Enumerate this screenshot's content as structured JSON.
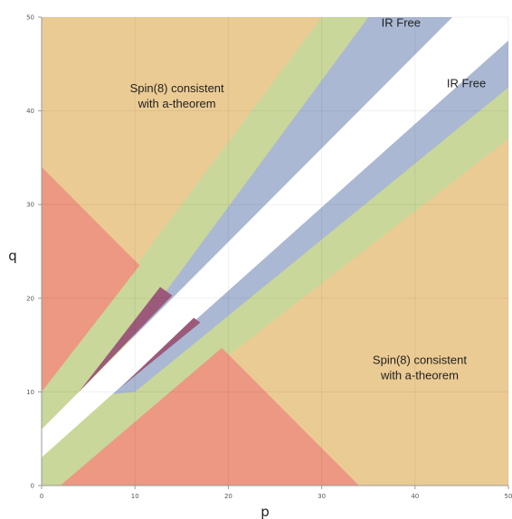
{
  "chart_data": {
    "type": "region",
    "title": "",
    "xlabel": "p",
    "ylabel": "q",
    "xlim": [
      0,
      50
    ],
    "ylim": [
      0,
      50
    ],
    "xticks": [
      0,
      10,
      20,
      30,
      40,
      50
    ],
    "yticks": [
      0,
      10,
      20,
      30,
      40,
      50
    ],
    "grid": true,
    "colors": {
      "background": "#ebcb94",
      "green": "#c9d79a",
      "blue": "#aab8d4",
      "white": "#ffffff",
      "red": "#ec9882",
      "purple": "#9b5a79"
    },
    "regions": [
      {
        "label": "Spin(8) consistent region (upper-left)",
        "color": "background",
        "points": [
          [
            0,
            50
          ],
          [
            30,
            50
          ],
          [
            0,
            10
          ]
        ]
      },
      {
        "label": "green band",
        "color": "green",
        "points": [
          [
            0,
            10
          ],
          [
            30,
            50
          ],
          [
            35,
            50
          ],
          [
            50,
            42.5
          ],
          [
            50,
            37
          ],
          [
            2,
            0
          ],
          [
            0,
            0
          ]
        ]
      },
      {
        "label": "blue band",
        "color": "blue",
        "points": [
          [
            5,
            9.5
          ],
          [
            35,
            50
          ],
          [
            50,
            50
          ],
          [
            50,
            42.5
          ],
          [
            10,
            10
          ]
        ]
      },
      {
        "label": "white strip",
        "color": "white",
        "points": [
          [
            0,
            3
          ],
          [
            0,
            6
          ],
          [
            44,
            50
          ],
          [
            50,
            50
          ],
          [
            50,
            47.5
          ]
        ]
      },
      {
        "label": "red region left",
        "color": "red",
        "points": [
          [
            0,
            34
          ],
          [
            0,
            10
          ],
          [
            10.5,
            23.5
          ]
        ]
      },
      {
        "label": "red region bottom",
        "color": "red",
        "points": [
          [
            2,
            0
          ],
          [
            19.3,
            14.7
          ],
          [
            34,
            0
          ]
        ]
      },
      {
        "label": "purple sliver upper",
        "color": "purple",
        "points": [
          [
            4,
            10
          ],
          [
            12.7,
            21.2
          ],
          [
            14,
            20.3
          ]
        ]
      },
      {
        "label": "purple sliver lower",
        "color": "purple",
        "points": [
          [
            8.5,
            10.5
          ],
          [
            16.3,
            17.9
          ],
          [
            17,
            17.4
          ]
        ]
      }
    ],
    "annotations": [
      {
        "text_lines": [
          "Spin(8) consistent",
          "with a-theorem"
        ],
        "x": 14.5,
        "y": 42
      },
      {
        "text_lines": [
          "IR Free"
        ],
        "x": 38.5,
        "y": 49
      },
      {
        "text_lines": [
          "IR Free"
        ],
        "x": 45.5,
        "y": 42.5
      },
      {
        "text_lines": [
          "Spin(8) consistent",
          "with a-theorem"
        ],
        "x": 40.5,
        "y": 13
      }
    ]
  }
}
